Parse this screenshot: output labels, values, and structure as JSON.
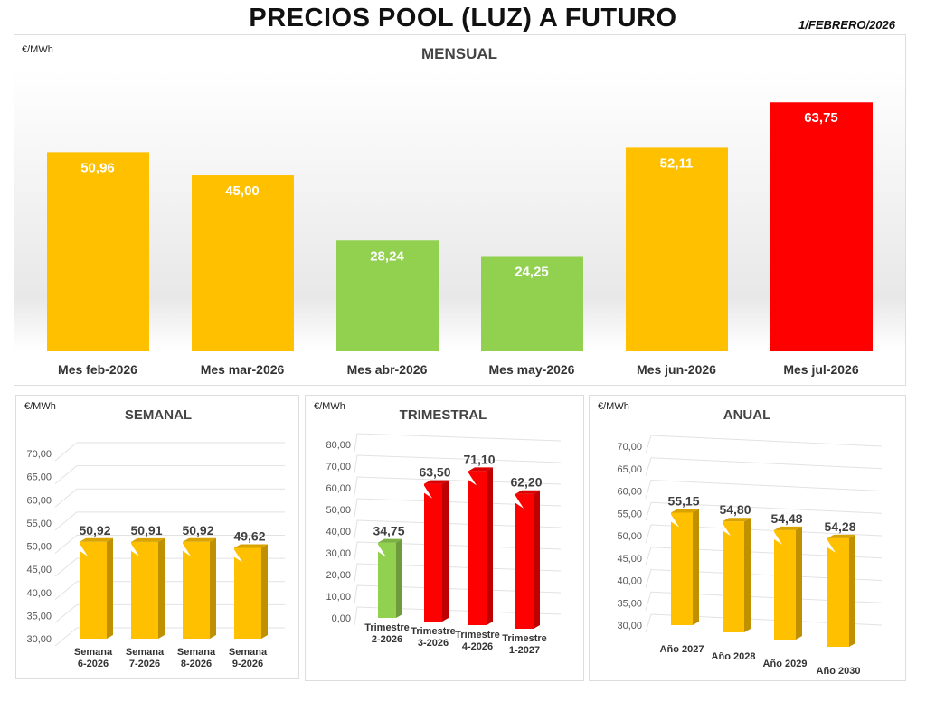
{
  "header": {
    "title": "PRECIOS POOL (LUZ) A FUTURO",
    "date": "1/FEBRERO/2026"
  },
  "colors": {
    "yellow": "#FFC000",
    "green": "#92D050",
    "red": "#FF0000"
  },
  "chart_data": [
    {
      "type": "bar",
      "title": "MENSUAL",
      "ylabel": "€/MWh",
      "categories": [
        "Mes feb-2026",
        "Mes mar-2026",
        "Mes abr-2026",
        "Mes may-2026",
        "Mes jun-2026",
        "Mes jul-2026"
      ],
      "values": [
        50.96,
        45.0,
        28.24,
        24.25,
        52.11,
        63.75
      ],
      "labels": [
        "50,96",
        "45,00",
        "28,24",
        "24,25",
        "52,11",
        "63,75"
      ],
      "colors": [
        "#FFC000",
        "#FFC000",
        "#92D050",
        "#92D050",
        "#FFC000",
        "#FF0000"
      ]
    },
    {
      "type": "bar",
      "title": "SEMANAL",
      "ylabel": "€/MWh",
      "categories": [
        [
          "Semana",
          "6-2026"
        ],
        [
          "Semana",
          "7-2026"
        ],
        [
          "Semana",
          "8-2026"
        ],
        [
          "Semana",
          "9-2026"
        ]
      ],
      "values": [
        50.92,
        50.91,
        50.92,
        49.62
      ],
      "labels": [
        "50,92",
        "50,91",
        "50,92",
        "49,62"
      ],
      "colors": [
        "#FFC000",
        "#FFC000",
        "#FFC000",
        "#FFC000"
      ],
      "ylim": [
        30,
        70
      ],
      "yticks": [
        "30,00",
        "35,00",
        "40,00",
        "45,00",
        "50,00",
        "55,00",
        "60,00",
        "65,00",
        "70,00"
      ],
      "grid": true
    },
    {
      "type": "bar",
      "title": "TRIMESTRAL",
      "ylabel": "€/MWh",
      "categories": [
        [
          "Trimestre",
          "2-2026"
        ],
        [
          "Trimestre",
          "3-2026"
        ],
        [
          "Trimestre",
          "4-2026"
        ],
        [
          "Trimestre",
          "1-2027"
        ]
      ],
      "values": [
        34.75,
        63.5,
        71.1,
        62.2
      ],
      "labels": [
        "34,75",
        "63,50",
        "71,10",
        "62,20"
      ],
      "colors": [
        "#92D050",
        "#FF0000",
        "#FF0000",
        "#FF0000"
      ],
      "ylim": [
        0,
        80
      ],
      "yticks": [
        "0,00",
        "10,00",
        "20,00",
        "30,00",
        "40,00",
        "50,00",
        "60,00",
        "70,00",
        "80,00"
      ],
      "grid": true
    },
    {
      "type": "bar",
      "title": "ANUAL",
      "ylabel": "€/MWh",
      "categories": [
        [
          "Año 2027"
        ],
        [
          "Año 2028"
        ],
        [
          "Año 2029"
        ],
        [
          "Año 2030"
        ]
      ],
      "values": [
        55.15,
        54.8,
        54.48,
        54.28
      ],
      "labels": [
        "55,15",
        "54,80",
        "54,48",
        "54,28"
      ],
      "colors": [
        "#FFC000",
        "#FFC000",
        "#FFC000",
        "#FFC000"
      ],
      "ylim": [
        30,
        70
      ],
      "yticks": [
        "30,00",
        "35,00",
        "40,00",
        "45,00",
        "50,00",
        "55,00",
        "60,00",
        "65,00",
        "70,00"
      ],
      "grid": true
    }
  ]
}
